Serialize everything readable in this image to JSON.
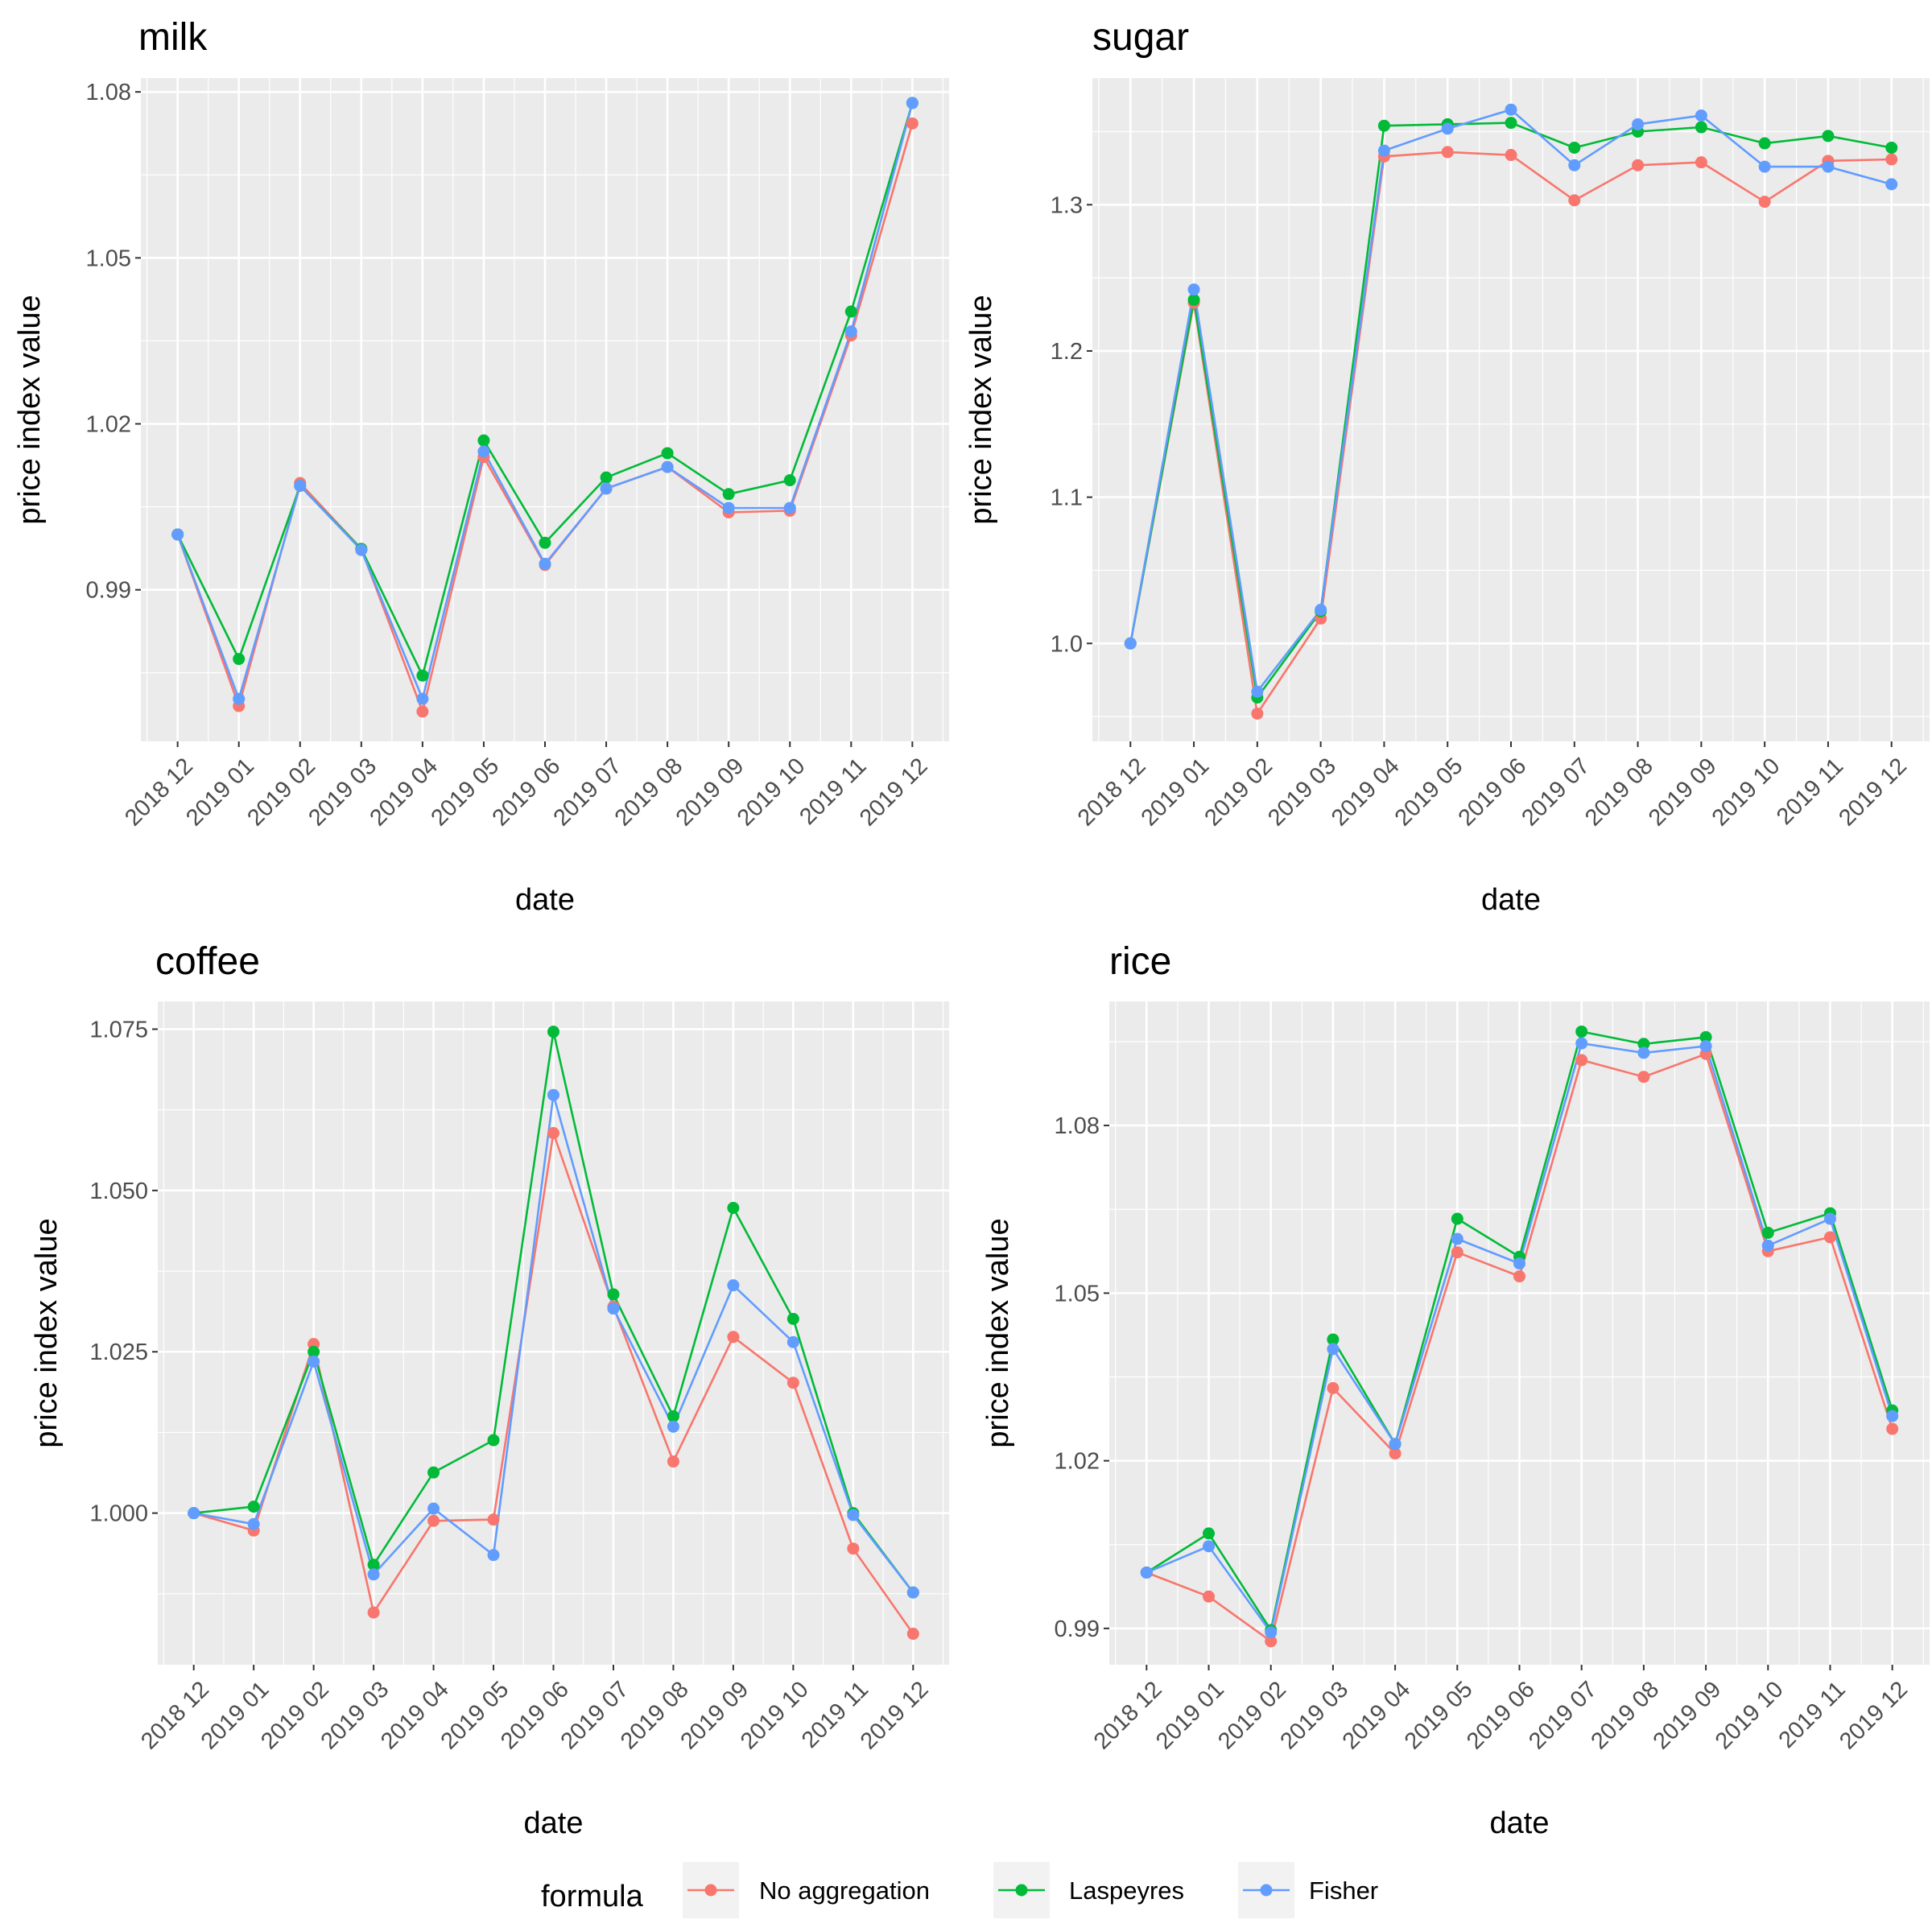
{
  "legend": {
    "title": "formula",
    "position": "bottom"
  },
  "series_colors": {
    "No aggregation": "#F8766D",
    "Laspeyres": "#00BA38",
    "Fisher": "#619CFF"
  },
  "chart_data": [
    {
      "type": "line",
      "title": "milk",
      "xlabel": "date",
      "ylabel": "price index value",
      "categories": [
        "2018 12",
        "2019 01",
        "2019 02",
        "2019 03",
        "2019 04",
        "2019 05",
        "2019 06",
        "2019 07",
        "2019 08",
        "2019 09",
        "2019 10",
        "2019 11",
        "2019 12"
      ],
      "ylim": [
        0.9626,
        1.0825
      ],
      "yticks": [
        0.99,
        1.02,
        1.05,
        1.08
      ],
      "ytick_labels": [
        "0.99",
        "1.02",
        "1.05",
        "1.08"
      ],
      "grid": true,
      "series": [
        {
          "name": "No aggregation",
          "values": [
            1.0,
            0.969,
            1.0093,
            0.9974,
            0.968,
            1.014,
            0.9945,
            1.0083,
            1.0122,
            1.004,
            1.0043,
            1.036,
            1.0743
          ]
        },
        {
          "name": "Laspeyres",
          "values": [
            1.0,
            0.9775,
            1.0088,
            0.9974,
            0.9745,
            1.017,
            0.9985,
            1.0103,
            1.0147,
            1.0073,
            1.0098,
            1.0403,
            1.078
          ]
        },
        {
          "name": "Fisher",
          "values": [
            1.0,
            0.9703,
            1.0088,
            0.9972,
            0.9703,
            1.015,
            0.9947,
            1.0083,
            1.0122,
            1.0048,
            1.0048,
            1.0367,
            1.078
          ]
        }
      ]
    },
    {
      "type": "line",
      "title": "sugar",
      "xlabel": "date",
      "ylabel": "price index value",
      "categories": [
        "2018 12",
        "2019 01",
        "2019 02",
        "2019 03",
        "2019 04",
        "2019 05",
        "2019 06",
        "2019 07",
        "2019 08",
        "2019 09",
        "2019 10",
        "2019 11",
        "2019 12"
      ],
      "ylim": [
        0.933,
        1.3866
      ],
      "yticks": [
        1.0,
        1.1,
        1.2,
        1.3
      ],
      "ytick_labels": [
        "1.0",
        "1.1",
        "1.2",
        "1.3"
      ],
      "grid": true,
      "series": [
        {
          "name": "No aggregation",
          "values": [
            1.0,
            1.233,
            0.952,
            1.017,
            1.333,
            1.336,
            1.334,
            1.303,
            1.327,
            1.329,
            1.302,
            1.33,
            1.331
          ]
        },
        {
          "name": "Laspeyres",
          "values": [
            1.0,
            1.235,
            0.963,
            1.022,
            1.354,
            1.355,
            1.356,
            1.339,
            1.35,
            1.353,
            1.342,
            1.347,
            1.339
          ]
        },
        {
          "name": "Fisher",
          "values": [
            1.0,
            1.242,
            0.967,
            1.023,
            1.337,
            1.352,
            1.365,
            1.327,
            1.355,
            1.361,
            1.326,
            1.326,
            1.314
          ]
        }
      ]
    },
    {
      "type": "line",
      "title": "coffee",
      "xlabel": "date",
      "ylabel": "price index value",
      "categories": [
        "2018 12",
        "2019 01",
        "2019 02",
        "2019 03",
        "2019 04",
        "2019 05",
        "2019 06",
        "2019 07",
        "2019 08",
        "2019 09",
        "2019 10",
        "2019 11",
        "2019 12"
      ],
      "ylim": [
        0.9765,
        1.0793
      ],
      "yticks": [
        1.0,
        1.025,
        1.05,
        1.075
      ],
      "ytick_labels": [
        "1.000",
        "1.025",
        "1.050",
        "1.075"
      ],
      "grid": true,
      "series": [
        {
          "name": "No aggregation",
          "values": [
            1.0,
            0.9973,
            1.0262,
            0.9846,
            0.9988,
            0.999,
            1.0589,
            1.032,
            1.008,
            1.0273,
            1.0202,
            0.9945,
            0.9813
          ]
        },
        {
          "name": "Laspeyres",
          "values": [
            1.0,
            1.001,
            1.025,
            0.992,
            1.0063,
            1.0113,
            1.0746,
            1.0339,
            1.015,
            1.0473,
            1.0301,
            1.0,
            0.9877
          ]
        },
        {
          "name": "Fisher",
          "values": [
            1.0,
            0.9983,
            1.0235,
            0.9905,
            1.0007,
            0.9935,
            1.0648,
            1.0317,
            1.0134,
            1.0353,
            1.0265,
            0.9997,
            0.9877
          ]
        }
      ]
    },
    {
      "type": "line",
      "title": "rice",
      "xlabel": "date",
      "ylabel": "price index value",
      "categories": [
        "2018 12",
        "2019 01",
        "2019 02",
        "2019 03",
        "2019 04",
        "2019 05",
        "2019 06",
        "2019 07",
        "2019 08",
        "2019 09",
        "2019 10",
        "2019 11",
        "2019 12"
      ],
      "ylim": [
        0.9835,
        1.1022
      ],
      "yticks": [
        0.99,
        1.02,
        1.05,
        1.08
      ],
      "ytick_labels": [
        "0.99",
        "1.02",
        "1.05",
        "1.08"
      ],
      "grid": true,
      "series": [
        {
          "name": "No aggregation",
          "values": [
            1.0,
            0.9957,
            0.9877,
            1.033,
            1.0213,
            1.0573,
            1.053,
            1.0917,
            1.0887,
            1.0928,
            1.0575,
            1.06,
            1.0257
          ]
        },
        {
          "name": "Laspeyres",
          "values": [
            1.0,
            1.007,
            0.9897,
            1.0417,
            1.023,
            1.0633,
            1.0565,
            1.0968,
            1.0946,
            1.0958,
            1.0608,
            1.0643,
            1.029
          ]
        },
        {
          "name": "Fisher",
          "values": [
            1.0,
            1.0047,
            0.9893,
            1.04,
            1.023,
            1.0597,
            1.0553,
            1.0947,
            1.093,
            1.0942,
            1.0585,
            1.0633,
            1.028
          ]
        }
      ]
    }
  ]
}
